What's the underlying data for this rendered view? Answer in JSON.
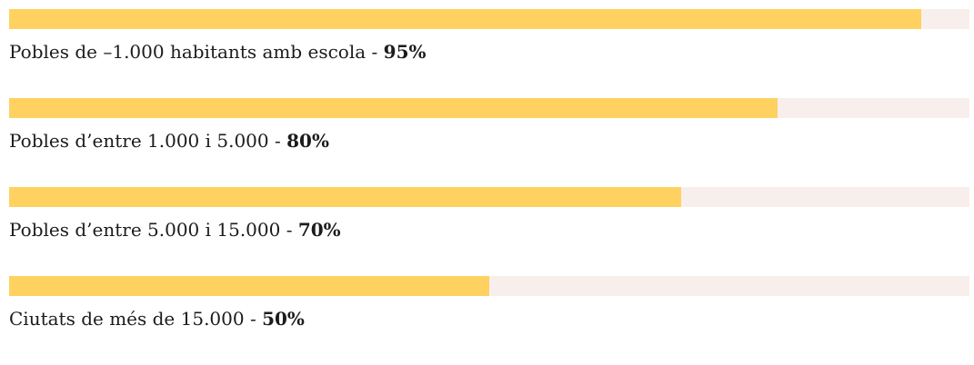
{
  "chart_data": {
    "type": "bar",
    "orientation": "horizontal",
    "max": 100,
    "bar_color": "#ffd161",
    "track_color": "#f8efed",
    "series": [
      {
        "name": "",
        "values": [
          95,
          80,
          70,
          50
        ]
      }
    ],
    "items": [
      {
        "label": "Pobles de –1.000 habitants amb escola",
        "value": 95,
        "value_label": "95%"
      },
      {
        "label": "Pobles d’entre 1.000 i 5.000",
        "value": 80,
        "value_label": "80%"
      },
      {
        "label": "Pobles d’entre 5.000 i 15.000",
        "value": 70,
        "value_label": "70%"
      },
      {
        "label": "Ciutats de més de 15.000",
        "value": 50,
        "value_label": "50%"
      }
    ]
  }
}
